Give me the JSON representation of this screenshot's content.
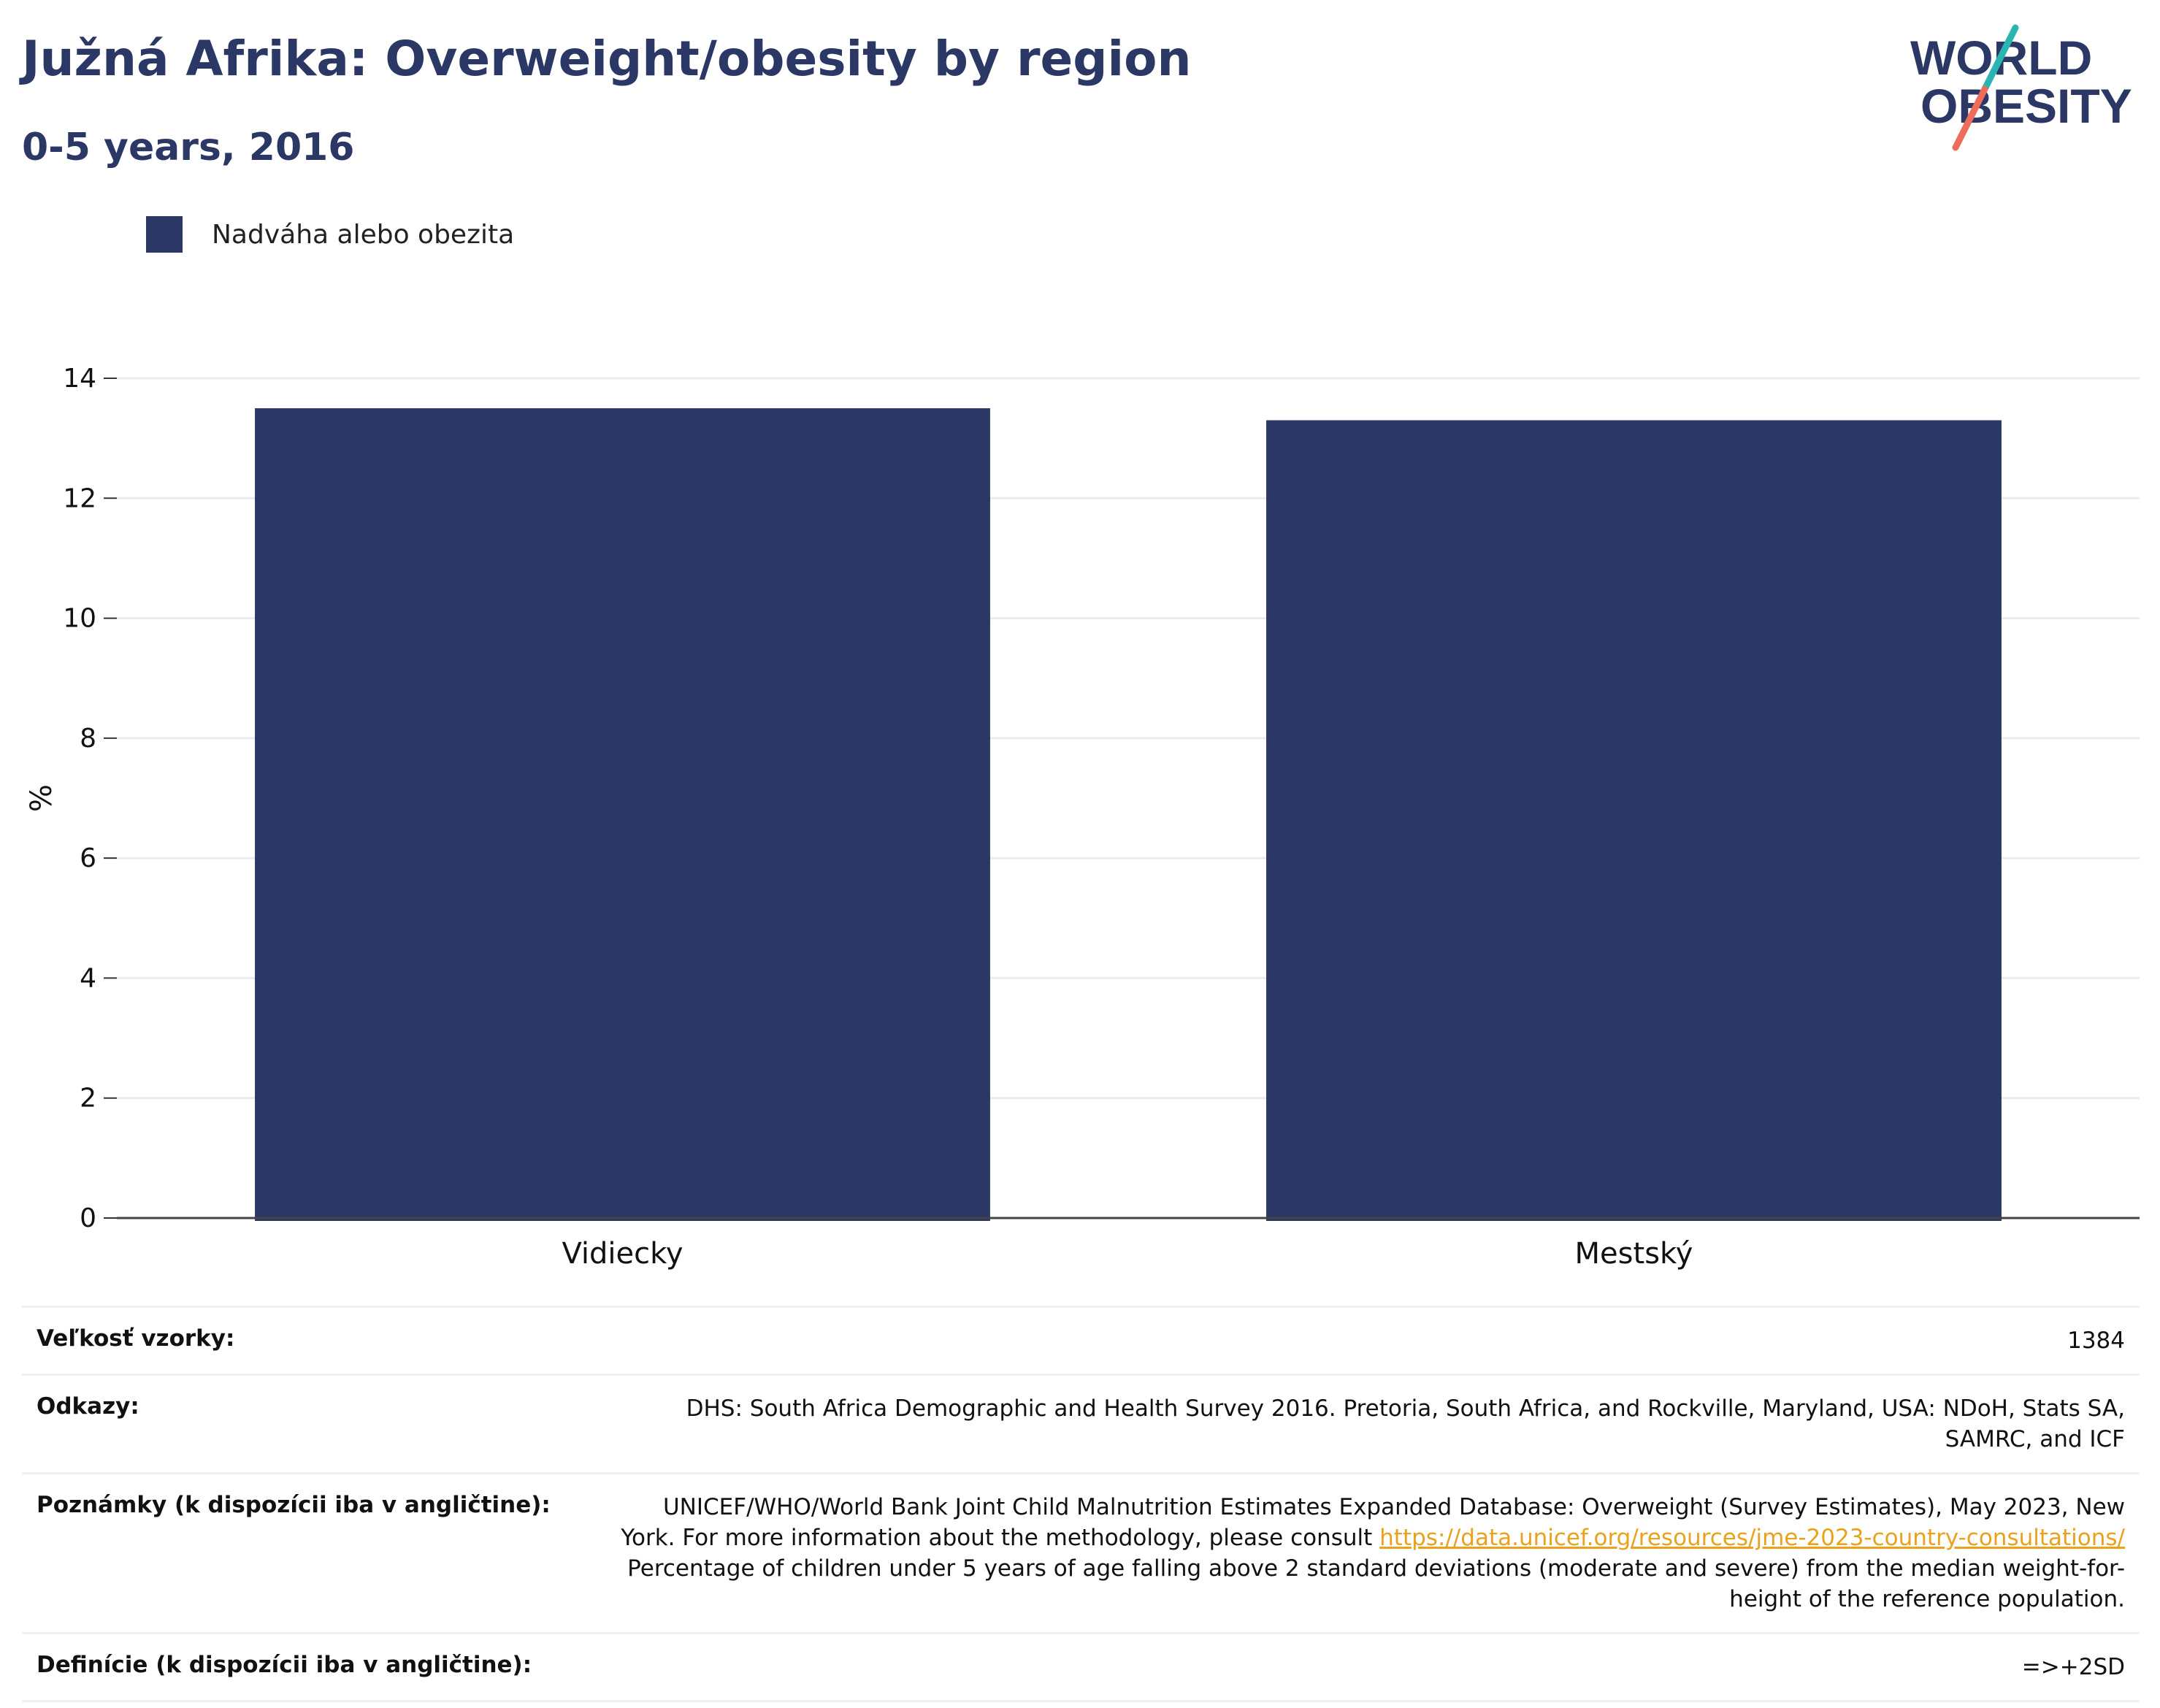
{
  "header": {
    "title": "Južná Afrika: Overweight/obesity by region",
    "subtitle": "0-5 years, 2016"
  },
  "logo": {
    "line1": "WORLD",
    "line2": "OBESITY",
    "colors": {
      "text": "#2b3764",
      "accent_teal": "#2bb5b0",
      "accent_coral": "#ee6c5b"
    }
  },
  "legend": {
    "label": "Nadváha alebo obezita",
    "color": "#2b3764"
  },
  "chart_data": {
    "type": "bar",
    "categories": [
      "Vidiecky",
      "Mestský"
    ],
    "series": [
      {
        "name": "Nadváha alebo obezita",
        "values": [
          13.5,
          13.3
        ],
        "color": "#2b3764"
      }
    ],
    "ylabel": "%",
    "ylim": [
      0,
      14
    ],
    "yticks": [
      0,
      2,
      4,
      6,
      8,
      10,
      12,
      14
    ],
    "grid": true,
    "legend_position": "top-left"
  },
  "meta": {
    "sample_size": {
      "label": "Veľkosť vzorky:",
      "value": "1384"
    },
    "references": {
      "label": "Odkazy:",
      "value": "DHS: South Africa Demographic and Health Survey 2016. Pretoria, South Africa, and Rockville, Maryland, USA: NDoH, Stats SA, SAMRC, and ICF"
    },
    "notes": {
      "label": "Poznámky (k dispozícii iba v angličtine):",
      "text_before": "UNICEF/WHO/World Bank Joint Child Malnutrition Estimates Expanded Database: Overweight (Survey Estimates), May 2023, New York. For more information about the methodology, please consult",
      "link": "https://data.unicef.org/resources/jme-2023-country-consultations/",
      "text_after": "Percentage of children under 5 years of age falling above 2 standard deviations (moderate and severe) from the median weight-for-height of the reference population."
    },
    "definitions": {
      "label": "Definície (k dispozícii iba v angličtine):",
      "value": "=>+2SD"
    }
  }
}
